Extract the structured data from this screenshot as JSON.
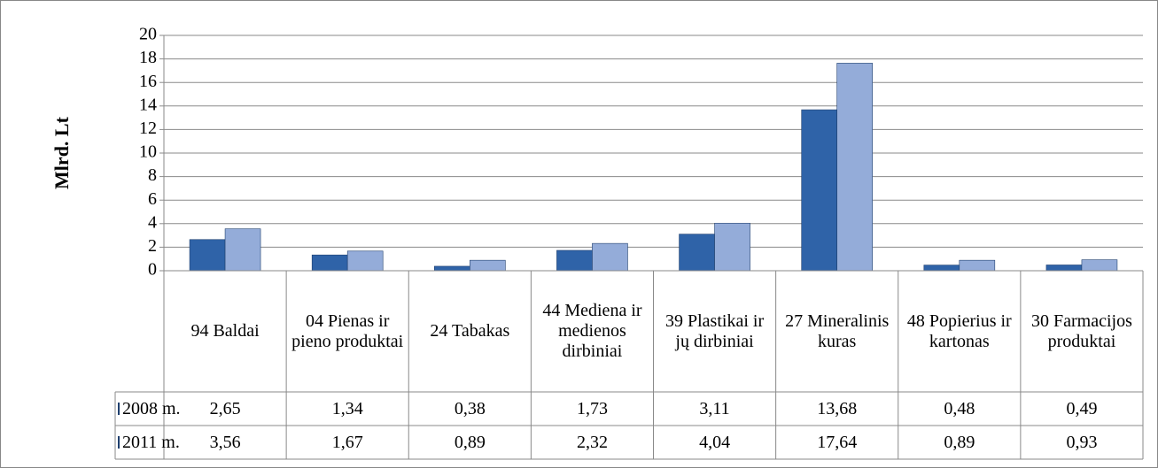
{
  "chart_data": {
    "type": "bar",
    "y_label": "Mlrd. Lt",
    "categories": [
      "94 Baldai",
      "04 Pienas ir pieno produktai",
      "24 Tabakas",
      "44 Mediena ir medienos dirbiniai",
      "39 Plastikai ir jų dirbiniai",
      "27 Mineralinis kuras",
      "48 Popierius ir kartonas",
      "30 Farmacijos produktai"
    ],
    "series": [
      {
        "name": "2008 m.",
        "color": "#2f63a8",
        "values": [
          2.65,
          1.34,
          0.38,
          1.73,
          3.11,
          13.68,
          0.48,
          0.49
        ],
        "value_labels": [
          "2,65",
          "1,34",
          "0,38",
          "1,73",
          "3,11",
          "13,68",
          "0,48",
          "0,49"
        ]
      },
      {
        "name": "2011 m.",
        "color": "#94acd9",
        "values": [
          3.56,
          1.67,
          0.89,
          2.32,
          4.04,
          17.64,
          0.89,
          0.93
        ],
        "value_labels": [
          "3,56",
          "1,67",
          "0,89",
          "2,32",
          "4,04",
          "17,64",
          "0,89",
          "0,93"
        ]
      }
    ],
    "ylim": [
      0,
      20
    ],
    "yticks": [
      0,
      2,
      4,
      6,
      8,
      10,
      12,
      14,
      16,
      18,
      20
    ],
    "grid": true
  }
}
